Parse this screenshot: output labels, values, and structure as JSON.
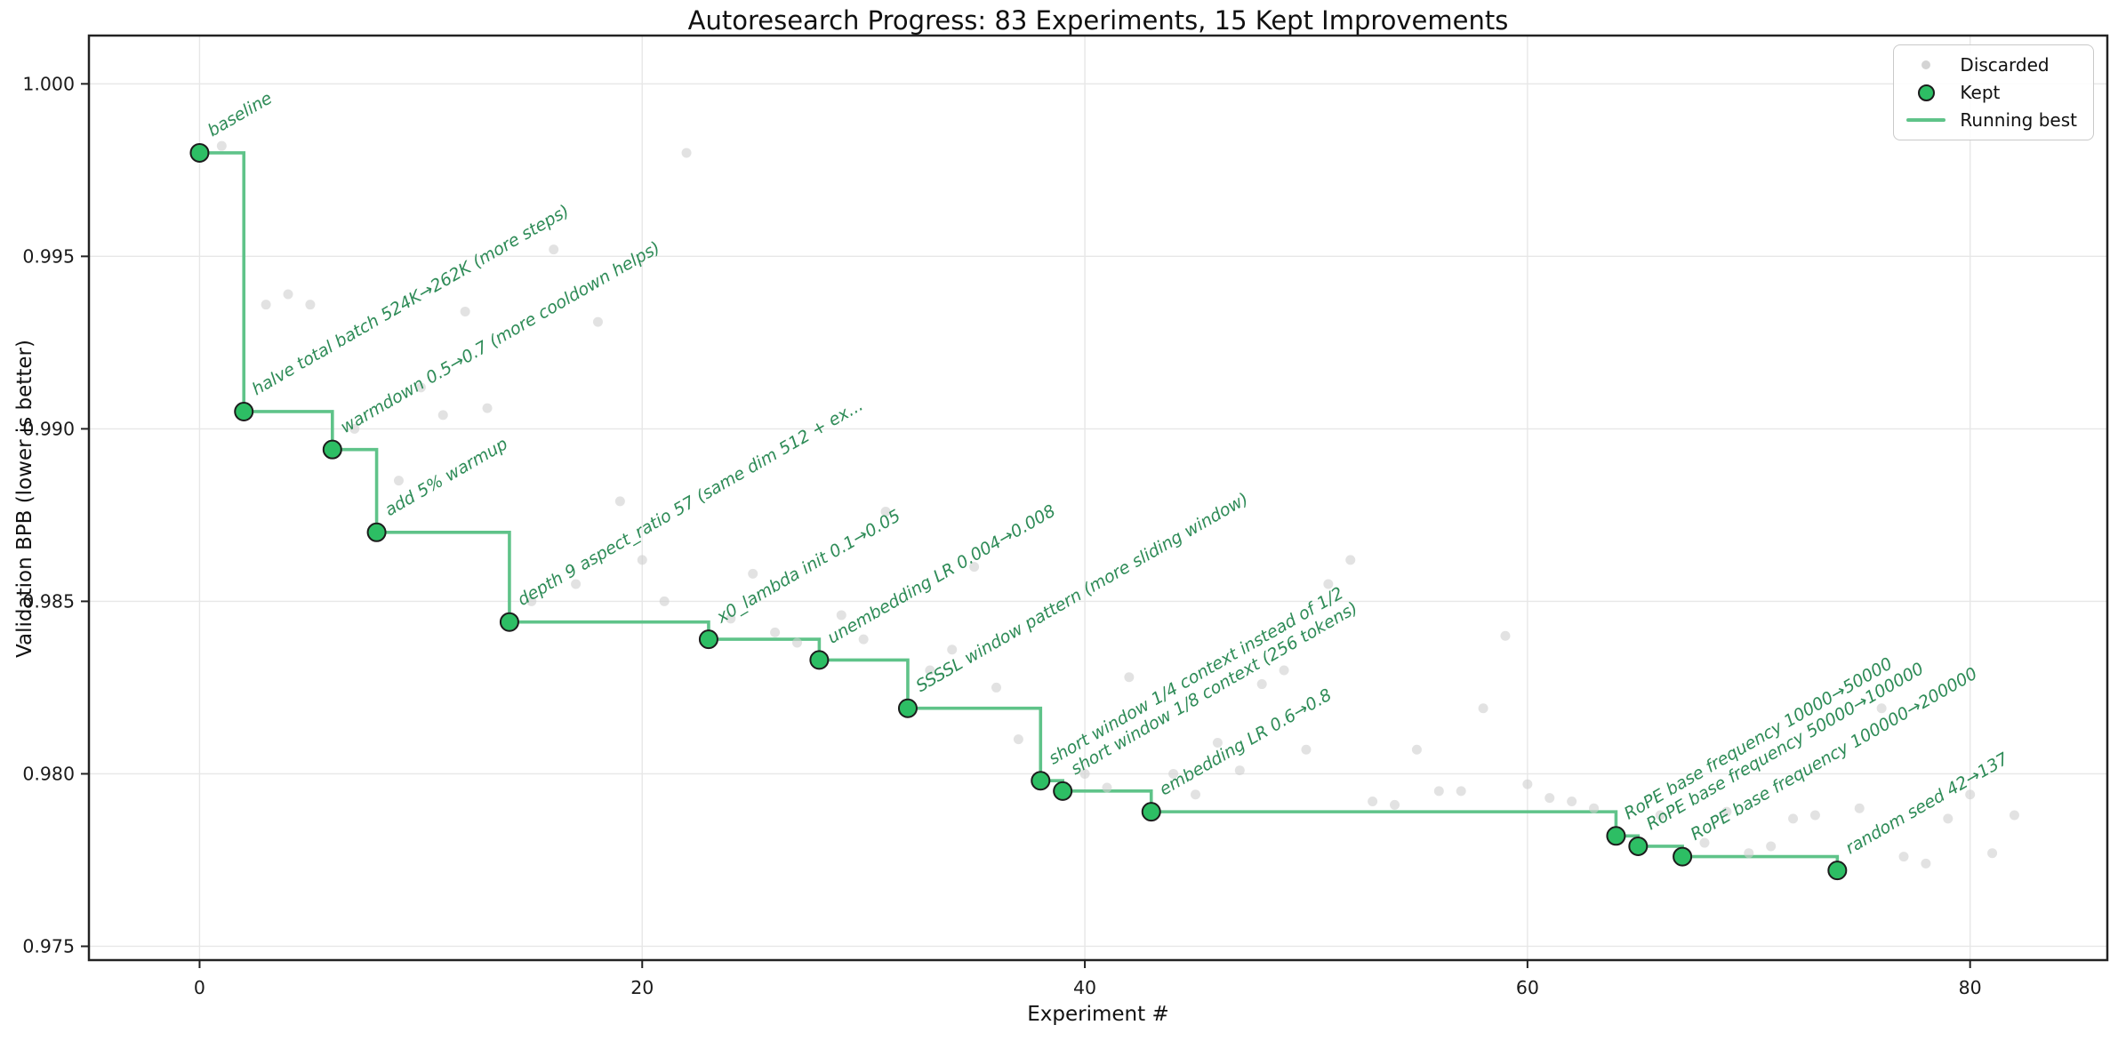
{
  "title": "Autoresearch Progress: 83 Experiments, 15 Kept Improvements",
  "axes": {
    "xlabel": "Experiment #",
    "ylabel": "Validation BPB (lower is better)"
  },
  "legend": {
    "discarded": "Discarded",
    "kept": "Kept",
    "running_best": "Running best"
  },
  "colors": {
    "kept_fill": "#2dbe64",
    "kept_edge": "#1c1c1c",
    "running_best_line": "#5fc389",
    "annotation_text": "#2e8b57",
    "discarded_fill": "#cfcfcf",
    "grid": "#e7e7e7",
    "spine": "#222222",
    "tick_text": "#1a1a1a"
  },
  "chart_data": {
    "type": "scatter",
    "title": "Autoresearch Progress: 83 Experiments, 15 Kept Improvements",
    "xlabel": "Experiment #",
    "ylabel": "Validation BPB (lower is better)",
    "xlim": [
      -5,
      86.2
    ],
    "ylim": [
      0.9746,
      1.0014
    ],
    "xticks": [
      0,
      20,
      40,
      60,
      80
    ],
    "yticks": [
      0.975,
      0.98,
      0.985,
      0.99,
      0.995,
      1.0
    ],
    "grid": true,
    "legend_position": "upper right",
    "legend_entries": [
      "Discarded",
      "Kept",
      "Running best"
    ],
    "kept": [
      {
        "x": 0,
        "y": 0.998,
        "label": "baseline"
      },
      {
        "x": 2,
        "y": 0.9905,
        "label": "halve total batch 524K→262K (more steps)"
      },
      {
        "x": 6,
        "y": 0.9894,
        "label": "warmdown 0.5→0.7 (more cooldown helps)"
      },
      {
        "x": 8,
        "y": 0.987,
        "label": "add 5% warmup"
      },
      {
        "x": 14,
        "y": 0.9844,
        "label": "depth 9 aspect_ratio 57 (same dim 512 + ex..."
      },
      {
        "x": 23,
        "y": 0.9839,
        "label": "x0_lambda init 0.1→0.05"
      },
      {
        "x": 28,
        "y": 0.9833,
        "label": "unembedding LR 0.004→0.008"
      },
      {
        "x": 32,
        "y": 0.9819,
        "label": "SSSSL window pattern (more sliding window)"
      },
      {
        "x": 38,
        "y": 0.9798,
        "label": "short window 1/4 context instead of 1/2"
      },
      {
        "x": 39,
        "y": 0.9795,
        "label": "short window 1/8 context (256 tokens)"
      },
      {
        "x": 43,
        "y": 0.9789,
        "label": "embedding LR 0.6→0.8"
      },
      {
        "x": 64,
        "y": 0.9782,
        "label": "RoPE base frequency 10000→50000"
      },
      {
        "x": 65,
        "y": 0.9779,
        "label": "RoPE base frequency 50000→100000"
      },
      {
        "x": 67,
        "y": 0.9776,
        "label": "RoPE base frequency 100000→200000"
      },
      {
        "x": 74,
        "y": 0.9772,
        "label": "random seed 42→137"
      }
    ],
    "discarded": [
      [
        1,
        0.9982
      ],
      [
        3,
        0.9936
      ],
      [
        4,
        0.9939
      ],
      [
        5,
        0.9936
      ],
      [
        7,
        0.99
      ],
      [
        9,
        0.9885
      ],
      [
        10,
        0.9912
      ],
      [
        11,
        0.9904
      ],
      [
        12,
        0.9934
      ],
      [
        13,
        0.9906
      ],
      [
        15,
        0.985
      ],
      [
        16,
        0.9952
      ],
      [
        17,
        0.9855
      ],
      [
        18,
        0.9931
      ],
      [
        19,
        0.9879
      ],
      [
        20,
        0.9862
      ],
      [
        21,
        0.985
      ],
      [
        22,
        0.998
      ],
      [
        24,
        0.9845
      ],
      [
        25,
        0.9858
      ],
      [
        26,
        0.9841
      ],
      [
        27,
        0.9838
      ],
      [
        29,
        0.9846
      ],
      [
        30,
        0.9839
      ],
      [
        31,
        0.9876
      ],
      [
        33,
        0.983
      ],
      [
        34,
        0.9836
      ],
      [
        35,
        0.986
      ],
      [
        36,
        0.9825
      ],
      [
        37,
        0.981
      ],
      [
        40,
        0.98
      ],
      [
        41,
        0.9796
      ],
      [
        42,
        0.9828
      ],
      [
        44,
        0.98
      ],
      [
        45,
        0.9794
      ],
      [
        46,
        0.9809
      ],
      [
        47,
        0.9801
      ],
      [
        48,
        0.9826
      ],
      [
        49,
        0.983
      ],
      [
        50,
        0.9807
      ],
      [
        51,
        0.9855
      ],
      [
        52,
        0.9862
      ],
      [
        53,
        0.9792
      ],
      [
        54,
        0.9791
      ],
      [
        55,
        0.9807
      ],
      [
        56,
        0.9795
      ],
      [
        57,
        0.9795
      ],
      [
        58,
        0.9819
      ],
      [
        59,
        0.984
      ],
      [
        60,
        0.9797
      ],
      [
        61,
        0.9793
      ],
      [
        62,
        0.9792
      ],
      [
        63,
        0.979
      ],
      [
        66,
        0.9788
      ],
      [
        68,
        0.978
      ],
      [
        69,
        0.9789
      ],
      [
        70,
        0.9777
      ],
      [
        71,
        0.9779
      ],
      [
        72,
        0.9787
      ],
      [
        73,
        0.9788
      ],
      [
        75,
        0.979
      ],
      [
        76,
        0.9819
      ],
      [
        77,
        0.9776
      ],
      [
        78,
        0.9774
      ],
      [
        79,
        0.9787
      ],
      [
        80,
        0.9794
      ],
      [
        81,
        0.9777
      ],
      [
        82,
        0.9788
      ]
    ]
  }
}
